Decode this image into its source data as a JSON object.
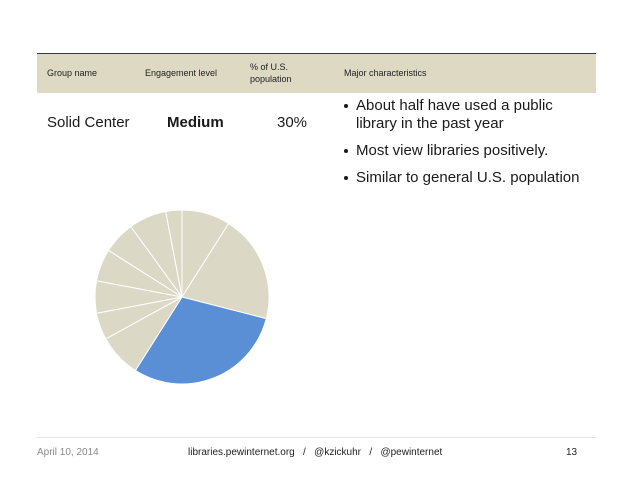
{
  "table": {
    "header": [
      "Group name",
      "Engagement level",
      "% of U.S. population",
      "Major characteristics"
    ],
    "row": {
      "group": "Solid Center",
      "engagement": "Medium",
      "share": "30%",
      "characteristics": [
        "About half have used a public library in the past year",
        "Most view libraries positively.",
        "Similar to general U.S. population"
      ]
    }
  },
  "pie": {
    "type": "pie",
    "values": [
      9,
      20,
      30,
      8,
      5,
      6,
      6,
      6,
      7,
      3
    ],
    "colors": [
      "#dcd8c6",
      "#dcd8c6",
      "#5a8fd6",
      "#dcd8c6",
      "#dcd8c6",
      "#dcd8c6",
      "#dcd8c6",
      "#dcd8c6",
      "#dcd8c6",
      "#dcd8c6"
    ]
  },
  "footer": {
    "date": "April 10, 2014",
    "center": "libraries.pewinternet.org   /   @kzickuhr   /   @pewinternet",
    "page": "13"
  }
}
